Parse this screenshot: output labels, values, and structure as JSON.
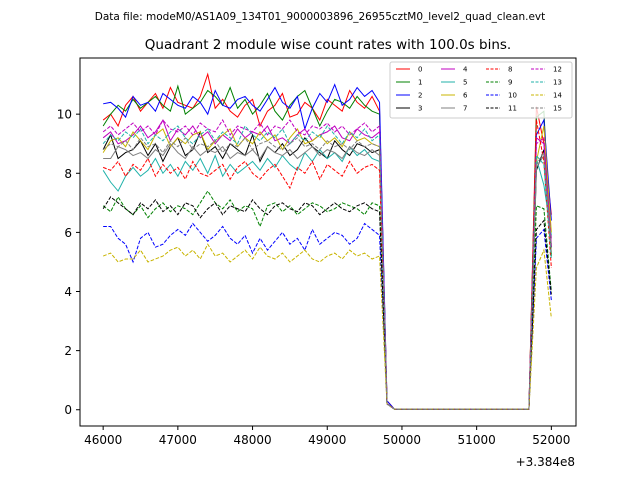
{
  "suptitle": "Data file: modeM0/AS1A09_134T01_9000003896_26955cztM0_level2_quad_clean.evt",
  "chart_data": {
    "type": "line",
    "title": "Quadrant 2 module wise count rates with 100.0s bins.",
    "xlabel": "",
    "ylabel": "",
    "x_offset_label": "+3.384e8",
    "xlim": [
      45690,
      52330
    ],
    "ylim": [
      -0.55,
      11.9
    ],
    "x_ticks": [
      46000,
      47000,
      48000,
      49000,
      50000,
      51000,
      52000
    ],
    "x_tick_labels": [
      "46000",
      "47000",
      "48000",
      "49000",
      "50000",
      "51000",
      "52000"
    ],
    "y_ticks": [
      0,
      2,
      4,
      6,
      8,
      10
    ],
    "y_tick_labels": [
      "0",
      "2",
      "4",
      "6",
      "8",
      "10"
    ],
    "x_start": 46000,
    "x_step": 100,
    "legend": {
      "placement": "top-right",
      "columns": 4
    },
    "series": [
      {
        "name": "0",
        "color": "#ff0000",
        "dash": "solid",
        "values": [
          9.8,
          10.0,
          9.6,
          10.3,
          10.6,
          10.1,
          10.4,
          10.7,
          10.2,
          10.9,
          10.4,
          10.3,
          10.2,
          10.6,
          11.35,
          10.2,
          10.5,
          10.1,
          9.9,
          10.3,
          10.5,
          9.6,
          10.1,
          10.3,
          10.7,
          9.9,
          10.0,
          10.4,
          10.2,
          9.8,
          10.5,
          10.3,
          10.1,
          10.8,
          10.4,
          10.2,
          10.6,
          10.1,
          0.3,
          0.02,
          0.02,
          0.02,
          0.02,
          0.02,
          0.02,
          0.02,
          0.02,
          0.02,
          0.02,
          0.02,
          0.02,
          0.02,
          0.02,
          0.02,
          0.02,
          0.02,
          0.02,
          0.02,
          10.25,
          9.0,
          6.6
        ]
      },
      {
        "name": "1",
        "color": "#008000",
        "dash": "solid",
        "values": [
          9.6,
          10.0,
          10.3,
          10.1,
          10.5,
          10.2,
          10.4,
          10.6,
          10.3,
          10.1,
          10.95,
          10.0,
          10.2,
          10.4,
          10.8,
          10.6,
          10.3,
          10.9,
          10.2,
          10.5,
          10.0,
          10.3,
          10.7,
          10.1,
          9.8,
          10.3,
          10.6,
          10.8,
          10.2,
          9.6,
          10.1,
          10.5,
          10.4,
          10.2,
          10.6,
          10.3,
          10.1,
          10.0,
          0.2,
          0.02,
          0.02,
          0.02,
          0.02,
          0.02,
          0.02,
          0.02,
          0.02,
          0.02,
          0.02,
          0.02,
          0.02,
          0.02,
          0.02,
          0.02,
          0.02,
          0.02,
          0.02,
          0.02,
          9.9,
          10.1,
          5.2
        ]
      },
      {
        "name": "2",
        "color": "#0000ff",
        "dash": "solid",
        "values": [
          10.35,
          10.4,
          10.2,
          9.9,
          10.6,
          10.3,
          10.4,
          10.1,
          10.7,
          10.5,
          10.3,
          10.2,
          10.6,
          10.4,
          10.0,
          10.8,
          10.3,
          10.2,
          10.5,
          10.6,
          10.3,
          10.1,
          10.5,
          10.9,
          10.4,
          10.2,
          10.6,
          9.5,
          10.2,
          10.7,
          10.4,
          11.0,
          10.3,
          10.5,
          10.9,
          10.6,
          10.8,
          10.4,
          0.3,
          0.02,
          0.02,
          0.02,
          0.02,
          0.02,
          0.02,
          0.02,
          0.02,
          0.02,
          0.02,
          0.02,
          0.02,
          0.02,
          0.02,
          0.02,
          0.02,
          0.02,
          0.02,
          0.02,
          9.3,
          9.8,
          6.4
        ]
      },
      {
        "name": "3",
        "color": "#000000",
        "dash": "solid",
        "values": [
          8.8,
          9.3,
          8.5,
          8.7,
          8.8,
          9.1,
          8.6,
          9.0,
          8.4,
          8.9,
          9.2,
          8.6,
          8.8,
          9.4,
          8.7,
          8.9,
          8.5,
          9.0,
          8.8,
          8.6,
          9.3,
          8.4,
          8.9,
          8.7,
          9.0,
          8.6,
          8.8,
          9.2,
          8.9,
          8.7,
          8.5,
          9.1,
          8.8,
          8.6,
          9.0,
          8.9,
          8.7,
          8.8,
          0.2,
          0.02,
          0.02,
          0.02,
          0.02,
          0.02,
          0.02,
          0.02,
          0.02,
          0.02,
          0.02,
          0.02,
          0.02,
          0.02,
          0.02,
          0.02,
          0.02,
          0.02,
          0.02,
          0.02,
          8.1,
          8.8,
          5.5
        ]
      },
      {
        "name": "4",
        "color": "#c000c0",
        "dash": "solid",
        "values": [
          9.2,
          9.4,
          9.0,
          9.1,
          9.3,
          9.6,
          9.2,
          9.4,
          9.8,
          9.1,
          9.5,
          9.3,
          9.6,
          9.2,
          9.4,
          9.0,
          9.3,
          9.1,
          9.5,
          9.2,
          9.4,
          9.3,
          9.6,
          9.1,
          9.2,
          9.0,
          9.3,
          9.5,
          9.1,
          9.3,
          9.4,
          9.6,
          9.2,
          9.1,
          9.5,
          9.3,
          9.2,
          9.4,
          0.2,
          0.02,
          0.02,
          0.02,
          0.02,
          0.02,
          0.02,
          0.02,
          0.02,
          0.02,
          0.02,
          0.02,
          0.02,
          0.02,
          0.02,
          0.02,
          0.02,
          0.02,
          0.02,
          0.02,
          9.2,
          9.0,
          5.8
        ]
      },
      {
        "name": "5",
        "color": "#20b2aa",
        "dash": "solid",
        "values": [
          8.1,
          7.7,
          7.4,
          7.9,
          8.2,
          7.9,
          8.1,
          8.5,
          8.0,
          8.3,
          7.9,
          8.4,
          8.1,
          8.5,
          8.0,
          8.6,
          7.9,
          8.3,
          8.0,
          8.2,
          8.4,
          8.1,
          8.5,
          8.2,
          8.6,
          8.3,
          8.1,
          8.7,
          8.4,
          8.8,
          8.5,
          8.7,
          8.4,
          8.9,
          8.6,
          8.8,
          8.5,
          8.4,
          0.2,
          0.02,
          0.02,
          0.02,
          0.02,
          0.02,
          0.02,
          0.02,
          0.02,
          0.02,
          0.02,
          0.02,
          0.02,
          0.02,
          0.02,
          0.02,
          0.02,
          0.02,
          0.02,
          0.02,
          8.5,
          7.6,
          5.9
        ]
      },
      {
        "name": "6",
        "color": "#c8b400",
        "dash": "solid",
        "values": [
          8.7,
          9.1,
          9.2,
          8.9,
          9.4,
          9.1,
          8.8,
          9.3,
          9.5,
          8.9,
          9.2,
          9.0,
          9.3,
          9.4,
          8.8,
          9.1,
          9.3,
          9.5,
          8.9,
          9.2,
          9.0,
          9.4,
          9.1,
          9.3,
          8.8,
          9.2,
          9.5,
          9.0,
          9.1,
          9.3,
          9.0,
          9.2,
          8.9,
          9.4,
          9.1,
          9.2,
          9.0,
          8.9,
          0.2,
          0.02,
          0.02,
          0.02,
          0.02,
          0.02,
          0.02,
          0.02,
          0.02,
          0.02,
          0.02,
          0.02,
          0.02,
          0.02,
          0.02,
          0.02,
          0.02,
          0.02,
          0.02,
          0.02,
          8.4,
          9.6,
          6.0
        ]
      },
      {
        "name": "7",
        "color": "#808080",
        "dash": "solid",
        "values": [
          8.5,
          8.5,
          8.9,
          8.8,
          8.6,
          8.7,
          8.5,
          8.8,
          8.6,
          9.0,
          8.7,
          8.5,
          8.9,
          8.6,
          8.8,
          8.7,
          8.9,
          8.5,
          8.7,
          8.6,
          8.8,
          8.5,
          8.9,
          8.7,
          8.6,
          8.8,
          8.5,
          8.7,
          8.9,
          8.6,
          8.8,
          8.7,
          8.5,
          8.9,
          8.7,
          8.6,
          8.8,
          8.6,
          0.2,
          0.02,
          0.02,
          0.02,
          0.02,
          0.02,
          0.02,
          0.02,
          0.02,
          0.02,
          0.02,
          0.02,
          0.02,
          0.02,
          0.02,
          0.02,
          0.02,
          0.02,
          0.02,
          0.02,
          8.2,
          8.6,
          5.6
        ]
      },
      {
        "name": "8",
        "color": "#ff0000",
        "dash": "dashed",
        "values": [
          8.2,
          8.1,
          8.4,
          7.9,
          8.3,
          8.1,
          8.5,
          7.9,
          8.3,
          8.0,
          8.2,
          7.8,
          8.4,
          8.0,
          7.9,
          8.1,
          8.3,
          7.8,
          8.2,
          8.4,
          8.0,
          7.8,
          8.1,
          8.3,
          7.9,
          7.5,
          8.2,
          8.0,
          8.4,
          7.8,
          8.3,
          8.1,
          7.9,
          8.4,
          8.0,
          8.2,
          8.3,
          8.1,
          0.2,
          0.02,
          0.02,
          0.02,
          0.02,
          0.02,
          0.02,
          0.02,
          0.02,
          0.02,
          0.02,
          0.02,
          0.02,
          0.02,
          0.02,
          0.02,
          0.02,
          0.02,
          0.02,
          0.02,
          9.8,
          8.4,
          4.8
        ]
      },
      {
        "name": "9",
        "color": "#008000",
        "dash": "dashed",
        "values": [
          6.9,
          6.7,
          7.2,
          6.8,
          6.6,
          6.9,
          6.5,
          6.8,
          7.0,
          6.7,
          6.9,
          6.8,
          6.6,
          7.0,
          7.4,
          7.0,
          6.8,
          7.1,
          6.7,
          6.9,
          6.8,
          6.2,
          6.9,
          7.0,
          6.7,
          6.9,
          6.6,
          6.8,
          7.0,
          6.9,
          6.7,
          6.8,
          7.0,
          6.9,
          6.8,
          6.6,
          7.0,
          6.9,
          0.2,
          0.02,
          0.02,
          0.02,
          0.02,
          0.02,
          0.02,
          0.02,
          0.02,
          0.02,
          0.02,
          0.02,
          0.02,
          0.02,
          0.02,
          0.02,
          0.02,
          0.02,
          0.02,
          0.02,
          6.9,
          6.8,
          4.0
        ]
      },
      {
        "name": "10",
        "color": "#0000ff",
        "dash": "dashed",
        "values": [
          6.2,
          6.2,
          5.8,
          5.6,
          5.0,
          5.8,
          6.0,
          5.5,
          5.6,
          5.9,
          6.1,
          5.9,
          6.3,
          6.0,
          5.7,
          5.9,
          6.2,
          5.8,
          5.6,
          5.9,
          5.3,
          5.8,
          5.4,
          5.7,
          6.0,
          5.6,
          5.8,
          5.4,
          6.1,
          5.6,
          5.8,
          6.0,
          5.9,
          5.6,
          5.8,
          6.3,
          6.1,
          5.9,
          0.2,
          0.02,
          0.02,
          0.02,
          0.02,
          0.02,
          0.02,
          0.02,
          0.02,
          0.02,
          0.02,
          0.02,
          0.02,
          0.02,
          0.02,
          0.02,
          0.02,
          0.02,
          0.02,
          0.02,
          5.8,
          6.1,
          3.7
        ]
      },
      {
        "name": "11",
        "color": "#000000",
        "dash": "dashed",
        "values": [
          6.8,
          7.2,
          7.0,
          6.8,
          6.6,
          7.0,
          6.8,
          7.1,
          6.7,
          6.9,
          6.6,
          7.0,
          6.9,
          6.5,
          6.8,
          7.0,
          6.6,
          6.9,
          6.8,
          6.7,
          7.1,
          6.8,
          6.6,
          6.9,
          7.0,
          6.8,
          6.7,
          7.0,
          6.9,
          6.6,
          6.8,
          7.0,
          6.8,
          6.7,
          6.9,
          7.0,
          6.8,
          6.7,
          0.2,
          0.02,
          0.02,
          0.02,
          0.02,
          0.02,
          0.02,
          0.02,
          0.02,
          0.02,
          0.02,
          0.02,
          0.02,
          0.02,
          0.02,
          0.02,
          0.02,
          0.02,
          0.02,
          0.02,
          6.1,
          6.4,
          3.9
        ]
      },
      {
        "name": "12",
        "color": "#c000c0",
        "dash": "dashed",
        "values": [
          9.4,
          9.6,
          9.3,
          9.5,
          9.7,
          9.4,
          9.6,
          9.3,
          9.8,
          9.5,
          9.4,
          9.6,
          9.3,
          9.7,
          9.5,
          9.4,
          9.8,
          9.3,
          9.6,
          9.5,
          9.4,
          9.7,
          9.3,
          9.6,
          9.5,
          9.8,
          9.4,
          9.3,
          9.6,
          9.5,
          9.7,
          9.4,
          9.6,
          9.3,
          9.5,
          9.7,
          9.4,
          9.6,
          0.2,
          0.02,
          0.02,
          0.02,
          0.02,
          0.02,
          0.02,
          0.02,
          0.02,
          0.02,
          0.02,
          0.02,
          0.02,
          0.02,
          0.02,
          0.02,
          0.02,
          0.02,
          0.02,
          0.02,
          9.0,
          9.2,
          5.5
        ]
      },
      {
        "name": "13",
        "color": "#20b2aa",
        "dash": "dashed",
        "values": [
          9.0,
          9.3,
          9.1,
          9.4,
          9.2,
          9.5,
          9.0,
          9.3,
          9.1,
          9.4,
          9.6,
          9.2,
          9.0,
          9.3,
          9.5,
          9.1,
          9.4,
          9.2,
          9.0,
          9.6,
          9.3,
          9.1,
          9.4,
          9.2,
          9.5,
          9.0,
          9.3,
          9.1,
          9.4,
          9.2,
          9.6,
          9.3,
          9.0,
          9.4,
          9.2,
          9.5,
          9.1,
          9.3,
          0.2,
          0.02,
          0.02,
          0.02,
          0.02,
          0.02,
          0.02,
          0.02,
          0.02,
          0.02,
          0.02,
          0.02,
          0.02,
          0.02,
          0.02,
          0.02,
          0.02,
          0.02,
          0.02,
          0.02,
          8.6,
          8.3,
          5.1
        ]
      },
      {
        "name": "14",
        "color": "#c8b400",
        "dash": "dashed",
        "values": [
          5.2,
          5.3,
          5.0,
          5.1,
          5.1,
          5.4,
          5.0,
          5.1,
          5.2,
          5.4,
          5.5,
          5.2,
          5.4,
          5.1,
          5.6,
          5.2,
          5.3,
          5.0,
          5.2,
          5.4,
          5.1,
          5.5,
          5.2,
          5.1,
          5.3,
          5.0,
          5.2,
          5.4,
          5.1,
          5.0,
          5.2,
          5.3,
          5.1,
          5.4,
          5.2,
          5.3,
          5.1,
          5.2,
          0.2,
          0.02,
          0.02,
          0.02,
          0.02,
          0.02,
          0.02,
          0.02,
          0.02,
          0.02,
          0.02,
          0.02,
          0.02,
          0.02,
          0.02,
          0.02,
          0.02,
          0.02,
          0.02,
          0.02,
          4.8,
          5.4,
          3.1
        ]
      },
      {
        "name": "15",
        "color": "#808080",
        "dash": "dashed",
        "values": [
          8.8,
          9.0,
          8.9,
          9.1,
          8.8,
          9.2,
          8.9,
          9.0,
          8.7,
          9.1,
          8.9,
          9.2,
          8.8,
          9.0,
          8.9,
          9.1,
          8.7,
          9.0,
          8.9,
          9.2,
          8.8,
          9.0,
          9.1,
          8.9,
          8.8,
          9.0,
          9.2,
          8.9,
          9.0,
          8.8,
          9.1,
          8.9,
          9.0,
          8.8,
          9.1,
          8.9,
          9.0,
          8.9,
          0.2,
          0.02,
          0.02,
          0.02,
          0.02,
          0.02,
          0.02,
          0.02,
          0.02,
          0.02,
          0.02,
          0.02,
          0.02,
          0.02,
          0.02,
          0.02,
          0.02,
          0.02,
          0.02,
          0.02,
          8.3,
          8.7,
          5.3
        ]
      }
    ]
  }
}
